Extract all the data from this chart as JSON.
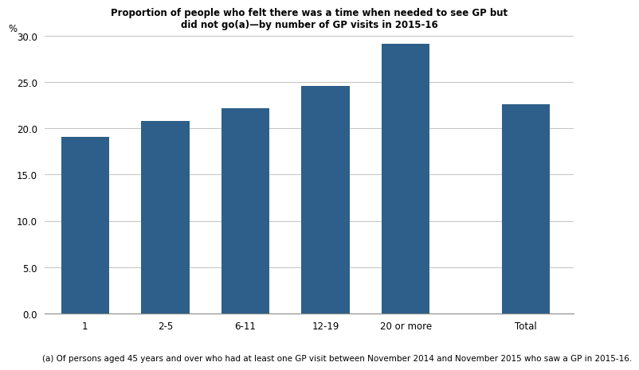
{
  "title_line1": "Proportion of people who felt there was a time when needed to see GP but",
  "title_line2": "did not go(a)—by number of GP visits in 2015-16",
  "ylabel": "%",
  "categories": [
    "1",
    "2-5",
    "6-11",
    "12-19",
    "20 or more",
    "Total"
  ],
  "values": [
    19.1,
    20.8,
    22.2,
    24.6,
    29.2,
    22.6
  ],
  "bar_color": "#2E5F8A",
  "ylim": [
    0,
    30
  ],
  "yticks": [
    0.0,
    5.0,
    10.0,
    15.0,
    20.0,
    25.0,
    30.0
  ],
  "footnote": "(a) Of persons aged 45 years and over who had at least one GP visit between November 2014 and November 2015 who saw a GP in 2015-16.",
  "title_fontsize": 8.5,
  "axis_fontsize": 8.5,
  "footnote_fontsize": 7.5,
  "bar_width": 0.6,
  "x_positions": [
    0,
    1,
    2,
    3,
    4,
    5.5
  ],
  "xlim": [
    -0.5,
    6.1
  ]
}
